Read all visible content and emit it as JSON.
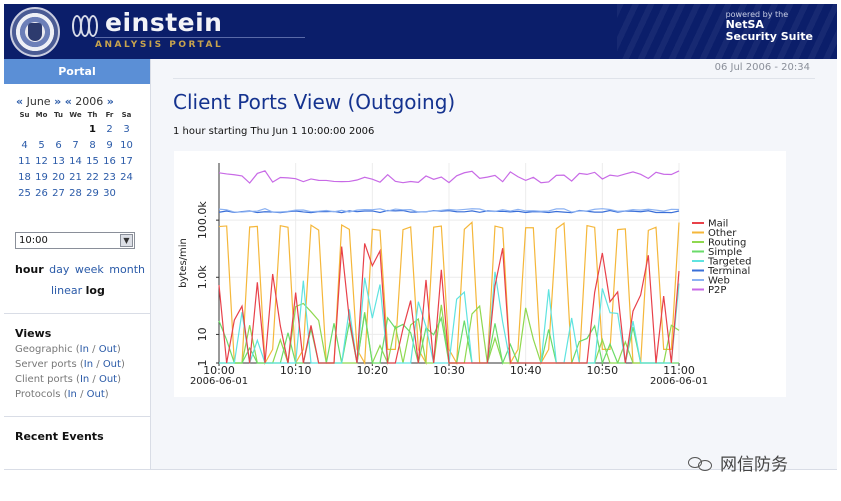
{
  "header": {
    "brand_title": "einstein",
    "brand_subtitle": "ANALYSIS PORTAL",
    "powered_line1": "powered by the",
    "powered_line2": "NetSA",
    "powered_line3": "Security Suite",
    "colors": {
      "bar": "#0b1e6a",
      "accent": "#c8a44e"
    }
  },
  "sidebar": {
    "tab_label": "Portal",
    "calendar": {
      "prev_month": "«",
      "month": "June",
      "next_month": "»",
      "prev_year": "«",
      "year": "2006",
      "next_year": "»",
      "dow": [
        "Su",
        "Mo",
        "Tu",
        "We",
        "Th",
        "Fr",
        "Sa"
      ],
      "weeks": [
        [
          "",
          "",
          "",
          "",
          "1",
          "2",
          "3"
        ],
        [
          "4",
          "5",
          "6",
          "7",
          "8",
          "9",
          "10"
        ],
        [
          "11",
          "12",
          "13",
          "14",
          "15",
          "16",
          "17"
        ],
        [
          "18",
          "19",
          "20",
          "21",
          "22",
          "23",
          "24"
        ],
        [
          "25",
          "26",
          "27",
          "28",
          "29",
          "30",
          ""
        ]
      ],
      "selected_day": "1"
    },
    "time_value": "10:00",
    "range": {
      "hour": "hour",
      "day": "day",
      "week": "week",
      "month": "month"
    },
    "scale": {
      "linear": "linear",
      "log": "log"
    },
    "views": {
      "heading": "Views",
      "rows": [
        {
          "label": "Geographic",
          "in": "In",
          "out": "Out"
        },
        {
          "label": "Server ports",
          "in": "In",
          "out": "Out"
        },
        {
          "label": "Client ports",
          "in": "In",
          "out": "Out"
        },
        {
          "label": "Protocols",
          "in": "In",
          "out": "Out"
        }
      ]
    },
    "recent_events": "Recent Events"
  },
  "main": {
    "datestamp": "06 Jul 2006 - 20:34",
    "title": "Client Ports View (Outgoing)",
    "subtitle": "1 hour starting Thu Jun 1 10:00:00 2006"
  },
  "watermark": "网信防务",
  "chart_data": {
    "type": "line",
    "ylabel": "bytes/min",
    "yscale": "log",
    "yticks": [
      "1",
      "10",
      "1.0k",
      "100.0k"
    ],
    "ylim": [
      1,
      10000000
    ],
    "xlim": [
      0,
      60
    ],
    "xticks": [
      {
        "label": "10:00",
        "sub": "2006-06-01"
      },
      {
        "label": "10:10",
        "sub": ""
      },
      {
        "label": "10:20",
        "sub": ""
      },
      {
        "label": "10:30",
        "sub": ""
      },
      {
        "label": "10:40",
        "sub": ""
      },
      {
        "label": "10:50",
        "sub": ""
      },
      {
        "label": "11:00",
        "sub": "2006-06-01"
      }
    ],
    "legend_position": "right",
    "series": [
      {
        "name": "Mail",
        "color": "#e8414a"
      },
      {
        "name": "Other",
        "color": "#f5b73a"
      },
      {
        "name": "Routing",
        "color": "#8fd84f"
      },
      {
        "name": "Simple",
        "color": "#6adb6a"
      },
      {
        "name": "Targeted",
        "color": "#5fe3e0"
      },
      {
        "name": "Terminal",
        "color": "#3a6fd8"
      },
      {
        "name": "Web",
        "color": "#8cb2f2"
      },
      {
        "name": "P2P",
        "color": "#c86ae6"
      }
    ]
  }
}
